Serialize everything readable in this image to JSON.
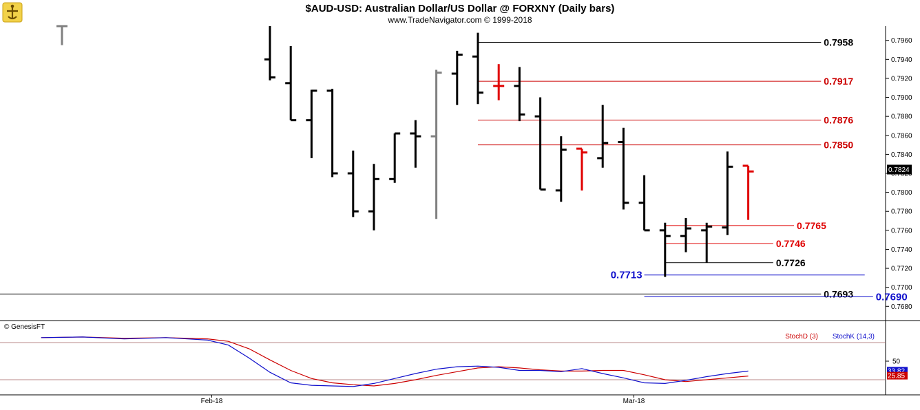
{
  "chart_data": {
    "type": "bar",
    "title": "$AUD-USD:  Australian Dollar/US Dollar @ FORXNY  (Daily bars)",
    "subtitle": "www.TradeNavigator.com © 1999-2018",
    "copyright": "© GenesisFT",
    "price_axis": {
      "ylim": [
        0.7665,
        0.7975
      ],
      "ticks": [
        0.768,
        0.77,
        0.772,
        0.774,
        0.776,
        0.778,
        0.78,
        0.782,
        0.784,
        0.786,
        0.788,
        0.79,
        0.792,
        0.794,
        0.796
      ],
      "tick_labels": [
        "0.7680",
        "0.7700",
        "0.7720",
        "0.7740",
        "0.7760",
        "0.7780",
        "0.7800",
        "0.7820",
        "0.7840",
        "0.7860",
        "0.7880",
        "0.7900",
        "0.7920",
        "0.7940",
        "0.7960"
      ],
      "last_price_label": "0.7824",
      "last_price": 0.7824
    },
    "x_axis": {
      "labels": [
        {
          "text": "Feb-18",
          "index": 7.2
        },
        {
          "text": "Mar-18",
          "index": 27.5
        }
      ]
    },
    "bars": [
      {
        "index": 0,
        "high": 0.7975,
        "low": 0.7955,
        "open": 0.7975,
        "close": 0.7975,
        "color": "#808080"
      },
      {
        "index": 10,
        "high": 0.7975,
        "low": 0.7918,
        "open": 0.794,
        "close": 0.7921,
        "color": "#000000"
      },
      {
        "index": 11,
        "high": 0.7954,
        "low": 0.7876,
        "open": 0.7915,
        "close": 0.7876,
        "color": "#000000"
      },
      {
        "index": 12,
        "high": 0.7908,
        "low": 0.7836,
        "open": 0.7876,
        "close": 0.7907,
        "color": "#000000"
      },
      {
        "index": 13,
        "high": 0.7909,
        "low": 0.7816,
        "open": 0.7907,
        "close": 0.782,
        "color": "#000000"
      },
      {
        "index": 14,
        "high": 0.7844,
        "low": 0.7774,
        "open": 0.782,
        "close": 0.778,
        "color": "#000000"
      },
      {
        "index": 15,
        "high": 0.783,
        "low": 0.776,
        "open": 0.778,
        "close": 0.7814,
        "color": "#000000"
      },
      {
        "index": 16,
        "high": 0.7862,
        "low": 0.781,
        "open": 0.7814,
        "close": 0.7862,
        "color": "#000000"
      },
      {
        "index": 17,
        "high": 0.7876,
        "low": 0.7826,
        "open": 0.7862,
        "close": 0.7859,
        "color": "#000000"
      },
      {
        "index": 18,
        "high": 0.7929,
        "low": 0.7772,
        "open": 0.7859,
        "close": 0.7926,
        "color": "#808080"
      },
      {
        "index": 19,
        "high": 0.7949,
        "low": 0.7892,
        "open": 0.7925,
        "close": 0.7945,
        "color": "#000000"
      },
      {
        "index": 20,
        "high": 0.7968,
        "low": 0.7893,
        "open": 0.7943,
        "close": 0.7905,
        "color": "#000000"
      },
      {
        "index": 21,
        "high": 0.7935,
        "low": 0.7897,
        "open": 0.7912,
        "close": 0.7912,
        "color": "#e00000"
      },
      {
        "index": 22,
        "high": 0.7932,
        "low": 0.7875,
        "open": 0.7912,
        "close": 0.7882,
        "color": "#000000"
      },
      {
        "index": 23,
        "high": 0.79,
        "low": 0.7803,
        "open": 0.788,
        "close": 0.7803,
        "color": "#000000"
      },
      {
        "index": 24,
        "high": 0.7859,
        "low": 0.779,
        "open": 0.7802,
        "close": 0.7845,
        "color": "#000000"
      },
      {
        "index": 25,
        "high": 0.7846,
        "low": 0.7802,
        "open": 0.7846,
        "close": 0.7842,
        "color": "#e00000"
      },
      {
        "index": 26,
        "high": 0.7892,
        "low": 0.7826,
        "open": 0.7836,
        "close": 0.7852,
        "color": "#000000"
      },
      {
        "index": 27,
        "high": 0.7868,
        "low": 0.7782,
        "open": 0.7853,
        "close": 0.7789,
        "color": "#000000"
      },
      {
        "index": 28,
        "high": 0.7818,
        "low": 0.776,
        "open": 0.7789,
        "close": 0.776,
        "color": "#000000"
      },
      {
        "index": 29,
        "high": 0.7768,
        "low": 0.7711,
        "open": 0.776,
        "close": 0.7754,
        "color": "#000000"
      },
      {
        "index": 30,
        "high": 0.7773,
        "low": 0.7737,
        "open": 0.7754,
        "close": 0.7762,
        "color": "#000000"
      },
      {
        "index": 31,
        "high": 0.7768,
        "low": 0.7726,
        "open": 0.776,
        "close": 0.7764,
        "color": "#000000"
      },
      {
        "index": 32,
        "high": 0.7843,
        "low": 0.7755,
        "open": 0.7763,
        "close": 0.7827,
        "color": "#000000"
      },
      {
        "index": 33,
        "high": 0.7828,
        "low": 0.7771,
        "open": 0.7828,
        "close": 0.7822,
        "color": "#e00000"
      }
    ],
    "levels": [
      {
        "value": 0.7958,
        "label": "0.7958",
        "color": "#000000",
        "from": 20.0,
        "to": 36.5,
        "label_side": "right"
      },
      {
        "value": 0.7917,
        "label": "0.7917",
        "color": "#cc0000",
        "from": 20.0,
        "to": 36.5,
        "label_side": "right"
      },
      {
        "value": 0.7876,
        "label": "0.7876",
        "color": "#cc0000",
        "from": 20.0,
        "to": 36.5,
        "label_side": "right"
      },
      {
        "value": 0.785,
        "label": "0.7850",
        "color": "#cc0000",
        "from": 20.0,
        "to": 36.5,
        "label_side": "right"
      },
      {
        "value": 0.7765,
        "label": "0.7765",
        "color": "#e00000",
        "from": 29.0,
        "to": 35.2,
        "label_side": "right"
      },
      {
        "value": 0.7746,
        "label": "0.7746",
        "color": "#e00000",
        "from": 29.0,
        "to": 34.2,
        "label_side": "right"
      },
      {
        "value": 0.7726,
        "label": "0.7726",
        "color": "#000000",
        "from": 29.0,
        "to": 34.2,
        "label_side": "right"
      },
      {
        "value": 0.7713,
        "label": "0.7713",
        "color": "#1010cc",
        "from": 28.0,
        "to": 38.6,
        "label_side": "left"
      },
      {
        "value": 0.7693,
        "label": "0.7693",
        "color": "#000000",
        "from": -3.0,
        "to": 36.5,
        "label_side": "right"
      },
      {
        "value": 0.769,
        "label": "0.7690",
        "color": "#1010cc",
        "from": 28.0,
        "to": 39.0,
        "label_side": "right"
      }
    ],
    "stochastic": {
      "ylim": [
        0,
        100
      ],
      "ticks": [
        50
      ],
      "tick_labels": [
        "50"
      ],
      "levels": [
        80,
        20
      ],
      "stochD": {
        "name": "StochD (3)",
        "color": "#cc0000",
        "last_label": "25.85",
        "x": [
          -1,
          1,
          3,
          5,
          7,
          8,
          9,
          10,
          11,
          12,
          13,
          14,
          15,
          16,
          17,
          18,
          19,
          20,
          21,
          22,
          23,
          24,
          25,
          26,
          27,
          28,
          29,
          30,
          31,
          32,
          33
        ],
        "values": [
          88,
          89,
          87,
          88,
          86,
          82,
          70,
          52,
          35,
          22,
          15,
          12,
          10,
          14,
          20,
          27,
          33,
          39,
          41,
          39,
          36,
          34,
          34,
          35,
          35,
          28,
          20,
          17,
          20,
          23,
          26
        ]
      },
      "stochK": {
        "name": "StochK (14,3)",
        "color": "#1010cc",
        "last_label": "33.82",
        "x": [
          -1,
          1,
          3,
          5,
          7,
          8,
          9,
          10,
          11,
          12,
          13,
          14,
          15,
          16,
          17,
          18,
          19,
          20,
          21,
          22,
          23,
          24,
          25,
          26,
          27,
          28,
          29,
          30,
          31,
          32,
          33
        ],
        "values": [
          88,
          89,
          86,
          88,
          84,
          76,
          55,
          32,
          15,
          11,
          10,
          9,
          14,
          22,
          30,
          37,
          41,
          42,
          40,
          35,
          35,
          33,
          38,
          30,
          23,
          15,
          14,
          19,
          25,
          30,
          34
        ]
      }
    }
  }
}
